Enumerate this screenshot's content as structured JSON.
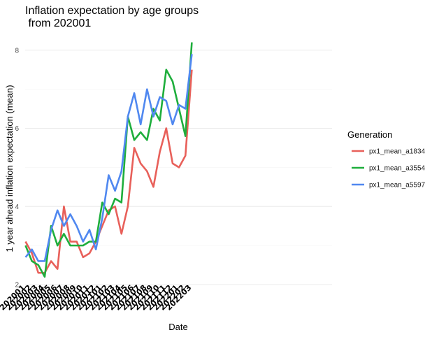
{
  "chart_data": {
    "type": "line",
    "title_lines": [
      "Inflation expectation by age groups",
      " from 202001"
    ],
    "xlabel": "Date",
    "ylabel": "1 year ahead inflation expectation (mean)",
    "categories": [
      "202001",
      "202002",
      "202003",
      "202004",
      "202005",
      "202006",
      "202007",
      "202008",
      "202009",
      "202010",
      "202011",
      "202012",
      "202101",
      "202102",
      "202103",
      "202104",
      "202105",
      "202106",
      "202107",
      "202108",
      "202109",
      "202110",
      "202111",
      "202112",
      "202201",
      "202202",
      "202203"
    ],
    "ylim": [
      2,
      8.3
    ],
    "yticks": [
      2,
      4,
      6,
      8
    ],
    "ytick_labels": [
      "2",
      "4",
      "6",
      "8"
    ],
    "grid": true,
    "legend": {
      "title": "Generation",
      "placement": "right"
    },
    "series": [
      {
        "name": "px1_mean_a1834",
        "color": "#e8605a",
        "values": [
          3.1,
          2.8,
          2.3,
          2.3,
          2.6,
          2.4,
          4.0,
          3.1,
          3.1,
          2.7,
          2.8,
          3.1,
          3.5,
          3.9,
          4.0,
          3.3,
          4.0,
          5.5,
          5.1,
          4.9,
          4.5,
          5.4,
          6.0,
          5.1,
          5.0,
          5.3,
          7.5
        ]
      },
      {
        "name": "px1_mean_a3554",
        "color": "#1eae3c",
        "values": [
          3.0,
          2.6,
          2.5,
          2.2,
          3.5,
          3.0,
          3.3,
          3.0,
          3.0,
          3.0,
          3.1,
          3.1,
          4.1,
          3.8,
          4.2,
          4.1,
          6.3,
          5.7,
          5.9,
          5.7,
          6.5,
          6.2,
          7.5,
          7.2,
          6.5,
          5.8,
          8.2
        ]
      },
      {
        "name": "px1_mean_a5597",
        "color": "#5088f0",
        "values": [
          2.7,
          2.9,
          2.6,
          2.6,
          3.4,
          3.9,
          3.5,
          3.8,
          3.5,
          3.1,
          3.4,
          2.9,
          3.7,
          4.8,
          4.4,
          4.9,
          6.3,
          6.9,
          6.1,
          7.0,
          6.3,
          6.8,
          6.7,
          6.1,
          6.6,
          6.5,
          7.9
        ]
      }
    ]
  }
}
